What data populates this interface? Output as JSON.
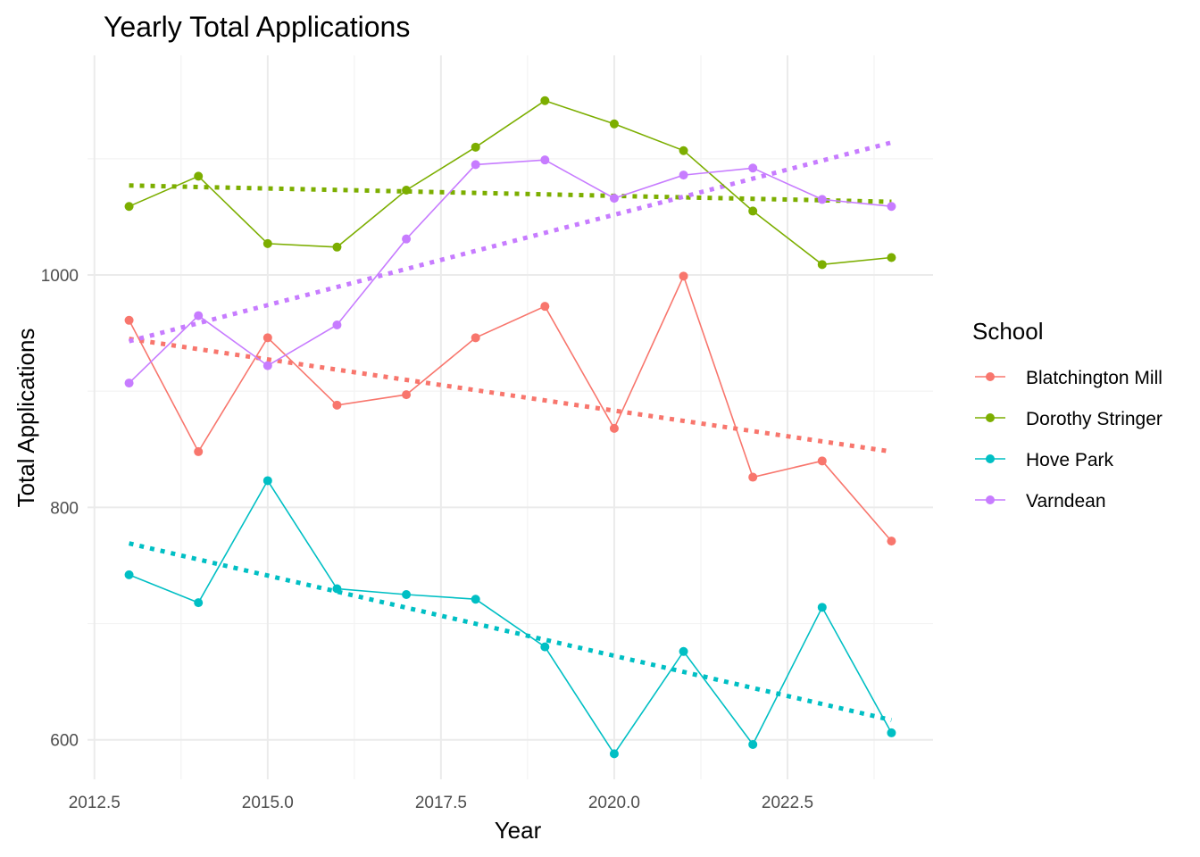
{
  "chart_data": {
    "type": "line",
    "title": "Yearly Total Applications",
    "xlabel": "Year",
    "ylabel": "Total Applications",
    "x": [
      2013,
      2014,
      2015,
      2016,
      2017,
      2018,
      2019,
      2020,
      2021,
      2022,
      2023,
      2024
    ],
    "xlim": [
      2012.4,
      2024.6
    ],
    "ylim": [
      566,
      1189
    ],
    "x_ticks": [
      2012.5,
      2015.0,
      2017.5,
      2020.0,
      2022.5
    ],
    "x_tick_labels": [
      "2012.5",
      "2015.0",
      "2017.5",
      "2020.0",
      "2022.5"
    ],
    "y_ticks": [
      600,
      800,
      1000
    ],
    "y_tick_labels": [
      "600",
      "800",
      "1000"
    ],
    "grid": true,
    "legend": {
      "title": "School",
      "position": "right"
    },
    "series": [
      {
        "name": "Blatchington Mill",
        "color": "#F8766D",
        "values": [
          961,
          848,
          946,
          888,
          897,
          946,
          973,
          868,
          999,
          826,
          840,
          771
        ],
        "trend": [
          945,
          848
        ]
      },
      {
        "name": "Dorothy Stringer",
        "color": "#7CAE00",
        "values": [
          1059,
          1085,
          1027,
          1024,
          1073,
          1110,
          1150,
          1130,
          1107,
          1055,
          1009,
          1015
        ],
        "trend": [
          1077,
          1063
        ]
      },
      {
        "name": "Hove Park",
        "color": "#00BFC4",
        "values": [
          742,
          718,
          823,
          730,
          725,
          721,
          680,
          588,
          676,
          596,
          714,
          606
        ],
        "trend": [
          769,
          617
        ]
      },
      {
        "name": "Varndean",
        "color": "#C77CFF",
        "values": [
          907,
          965,
          922,
          957,
          1031,
          1095,
          1099,
          1066,
          1086,
          1092,
          1065,
          1059
        ],
        "trend": [
          943,
          1114
        ]
      }
    ]
  }
}
